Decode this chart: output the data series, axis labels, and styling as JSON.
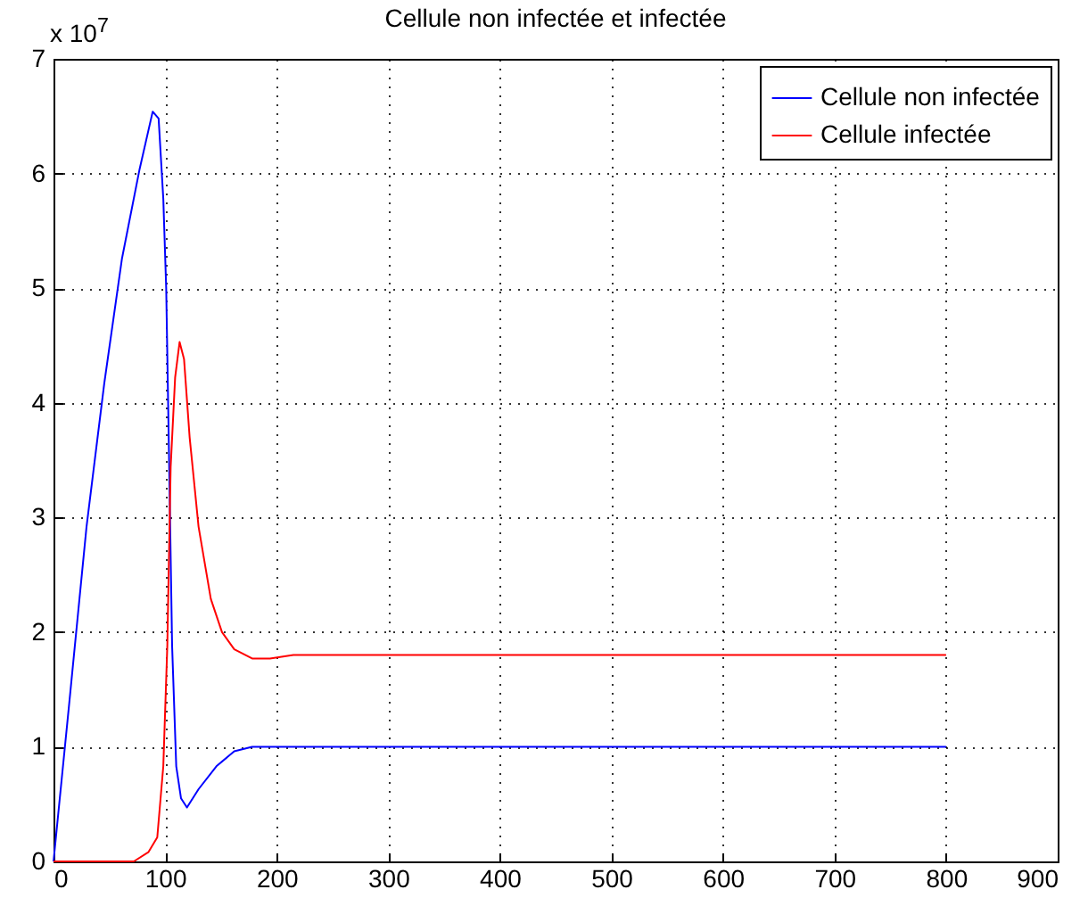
{
  "chart_data": {
    "type": "line",
    "title": "Cellule non infectée et  infectée",
    "annotations": [
      "x 10$^{7}$"
    ],
    "xlim": [
      0,
      900
    ],
    "xticks": [
      0,
      100,
      200,
      300,
      400,
      500,
      600,
      700,
      800,
      900
    ],
    "ylim": [
      0,
      7
    ],
    "yticks": [
      0,
      1,
      2,
      3,
      4,
      5,
      6,
      7
    ],
    "grid": true,
    "legend": "top right",
    "line_style": "solid",
    "marker": "none",
    "series": [
      {
        "name": "Cellule non infectée",
        "color": "#0000ff",
        "x": [
          0,
          13.8,
          29.6,
          45.5,
          61.4,
          77.2,
          88.9,
          94.2,
          98.4,
          101,
          103.7,
          106.3,
          110,
          114.3,
          119.6,
          130,
          146,
          162,
          178,
          199,
          300,
          500,
          800
        ],
        "values": [
          0,
          1.35,
          2.92,
          4.17,
          5.26,
          6.04,
          6.54,
          6.48,
          5.78,
          5.0,
          3.44,
          1.88,
          0.83,
          0.55,
          0.47,
          0.63,
          0.83,
          0.96,
          1.0,
          1.0,
          1.0,
          1.0,
          1.0
        ]
      },
      {
        "name": "Cellule infectée",
        "color": "#ff0000",
        "x": [
          0,
          72,
          85,
          93,
          98.4,
          102,
          105,
          109,
          113,
          117,
          122,
          130,
          141,
          151,
          162,
          178,
          194,
          215,
          300,
          500,
          800
        ],
        "values": [
          0,
          0,
          0.08,
          0.21,
          0.83,
          1.88,
          3.44,
          4.22,
          4.53,
          4.38,
          3.7,
          2.92,
          2.29,
          2.0,
          1.85,
          1.77,
          1.77,
          1.8,
          1.8,
          1.8,
          1.8
        ]
      }
    ]
  }
}
